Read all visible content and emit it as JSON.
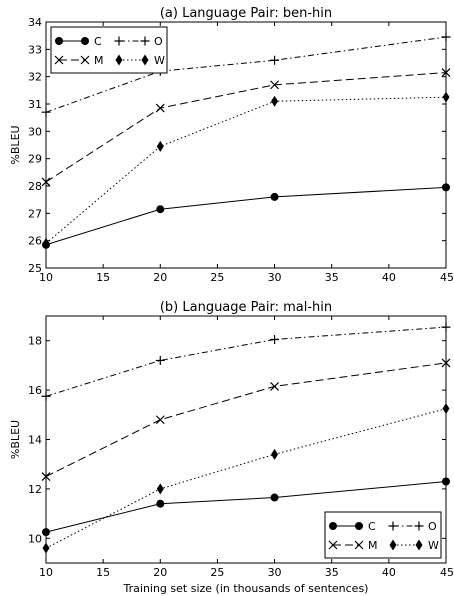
{
  "chart_data": [
    {
      "type": "line",
      "title": "(a) Language Pair: ben-hin",
      "xlabel": "",
      "ylabel": "%BLEU",
      "xlim": [
        10,
        45
      ],
      "ylim": [
        25,
        34
      ],
      "xticks": [
        10,
        15,
        20,
        25,
        30,
        35,
        40,
        45
      ],
      "yticks": [
        25,
        26,
        27,
        28,
        29,
        30,
        31,
        32,
        33,
        34
      ],
      "x": [
        10,
        20,
        30,
        45
      ],
      "legend_position": "top-left",
      "series": [
        {
          "name": "C",
          "marker": "circle",
          "dash": "solid",
          "values": [
            25.85,
            27.15,
            27.6,
            27.95
          ]
        },
        {
          "name": "M",
          "marker": "x",
          "dash": "dashed",
          "values": [
            28.15,
            30.85,
            31.7,
            32.15
          ]
        },
        {
          "name": "O",
          "marker": "plus",
          "dash": "dashdot",
          "values": [
            30.7,
            32.2,
            32.6,
            33.45
          ]
        },
        {
          "name": "W",
          "marker": "diamond",
          "dash": "dotted",
          "values": [
            25.9,
            29.45,
            31.1,
            31.25
          ]
        }
      ]
    },
    {
      "type": "line",
      "title": "(b) Language Pair: mal-hin",
      "xlabel": "Training set size (in thousands of sentences)",
      "ylabel": "%BLEU",
      "xlim": [
        10,
        45
      ],
      "ylim": [
        9,
        19
      ],
      "xticks": [
        10,
        15,
        20,
        25,
        30,
        35,
        40,
        45
      ],
      "yticks": [
        10,
        12,
        14,
        16,
        18
      ],
      "x": [
        10,
        20,
        30,
        45
      ],
      "legend_position": "bottom-right",
      "series": [
        {
          "name": "C",
          "marker": "circle",
          "dash": "solid",
          "values": [
            10.25,
            11.4,
            11.65,
            12.3
          ]
        },
        {
          "name": "M",
          "marker": "x",
          "dash": "dashed",
          "values": [
            12.5,
            14.8,
            16.15,
            17.1
          ]
        },
        {
          "name": "O",
          "marker": "plus",
          "dash": "dashdot",
          "values": [
            15.75,
            17.2,
            18.05,
            18.55
          ]
        },
        {
          "name": "W",
          "marker": "diamond",
          "dash": "dotted",
          "values": [
            9.6,
            12.0,
            13.4,
            15.25
          ]
        }
      ]
    }
  ]
}
